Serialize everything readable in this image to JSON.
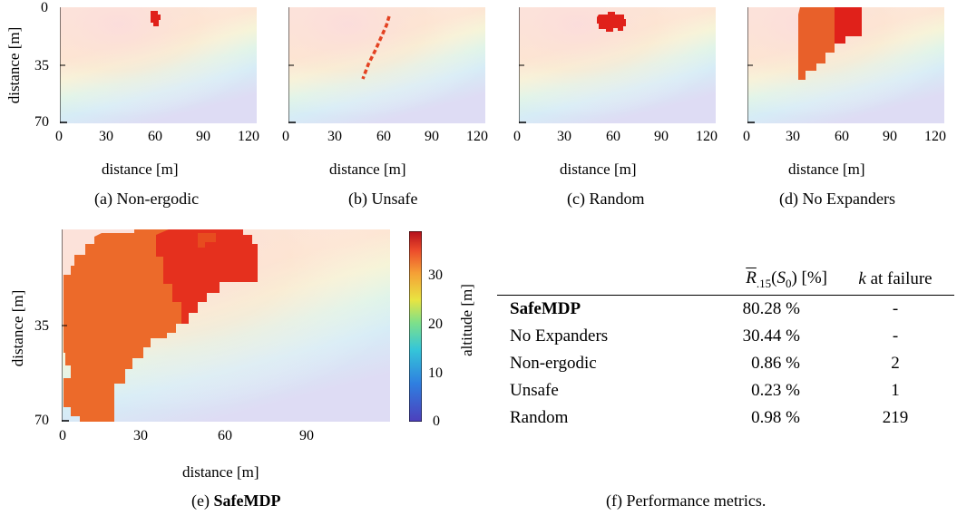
{
  "panels": [
    {
      "id": "a",
      "caption": "(a) Non-ergodic",
      "xlabel": "distance [m]",
      "ylabel": "distance [m]",
      "xticks": [
        "0",
        "30",
        "60",
        "90",
        "120"
      ],
      "yticks": [
        "0",
        "35",
        "70"
      ]
    },
    {
      "id": "b",
      "caption": "(b) Unsafe",
      "xlabel": "distance [m]",
      "xticks": [
        "0",
        "30",
        "60",
        "90",
        "120"
      ]
    },
    {
      "id": "c",
      "caption": "(c) Random",
      "xlabel": "distance [m]",
      "xticks": [
        "0",
        "30",
        "60",
        "90",
        "120"
      ]
    },
    {
      "id": "d",
      "caption": "(d) No Expanders",
      "xlabel": "distance [m]",
      "xticks": [
        "0",
        "30",
        "60",
        "90",
        "120"
      ]
    }
  ],
  "panel_e": {
    "caption_prefix": "(e) ",
    "caption_bold": "SafeMDP",
    "xlabel": "distance [m]",
    "ylabel": "distance [m]",
    "xticks": [
      "0",
      "30",
      "60",
      "90"
    ],
    "yticks": [
      "35",
      "70"
    ],
    "colorbar_label": "altitude [m]",
    "colorbar_ticks": [
      "30",
      "20",
      "10",
      "0"
    ]
  },
  "table": {
    "caption": "(f) Performance metrics.",
    "headers": [
      "",
      "R̄.15(S0) [%]",
      "k at failure"
    ],
    "rows": [
      {
        "method": "SafeMDP",
        "value": "80.28 %",
        "k": "-"
      },
      {
        "method": "No Expanders",
        "value": "30.44 %",
        "k": "-"
      },
      {
        "method": "Non-ergodic",
        "value": "0.86 %",
        "k": "2"
      },
      {
        "method": "Unsafe",
        "value": "0.23 %",
        "k": "1"
      },
      {
        "method": "Random",
        "value": "0.98 %",
        "k": "219"
      }
    ]
  },
  "colors": {
    "explored": "#e8602a",
    "explored_dark": "#e0211a",
    "path": "#e34222"
  }
}
